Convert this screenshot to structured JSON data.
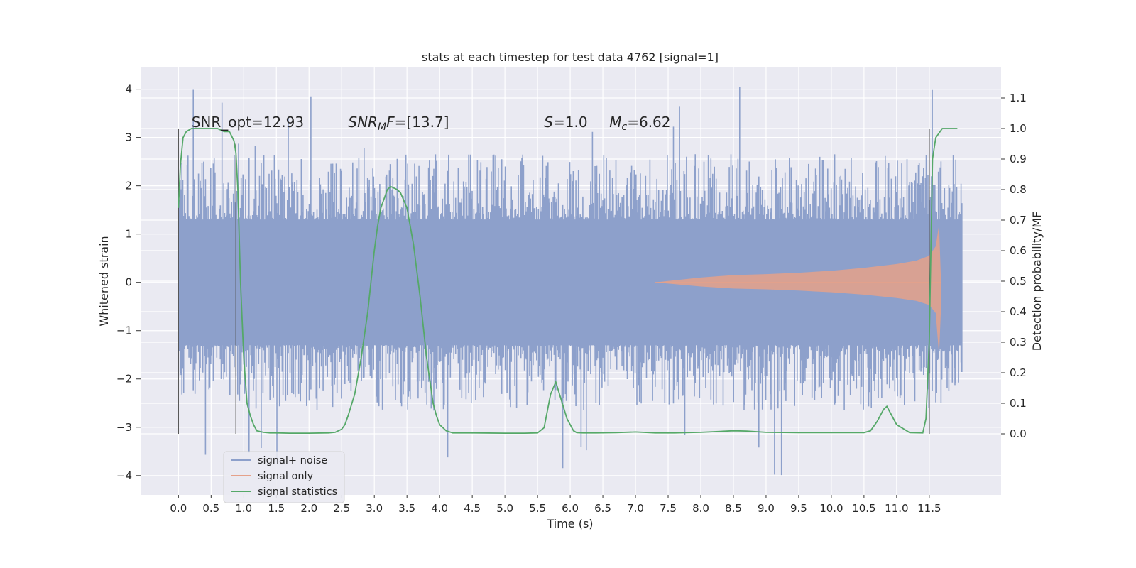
{
  "chart_data": {
    "type": "line",
    "title": "stats at each timestep for test data 4762 [signal=1]",
    "xlabel": "Time (s)",
    "ylabel_left": "Whitened strain",
    "ylabel_right": "Detection probability/MF",
    "xlim": [
      -0.58,
      12.6
    ],
    "ylim_left": [
      -4.4,
      4.45
    ],
    "ylim_right": [
      -0.2,
      1.2
    ],
    "x_ticks": [
      0.0,
      0.5,
      1.0,
      1.5,
      2.0,
      2.5,
      3.0,
      3.5,
      4.0,
      4.5,
      5.0,
      5.5,
      6.0,
      6.5,
      7.0,
      7.5,
      8.0,
      8.5,
      9.0,
      9.5,
      10.0,
      10.5,
      11.0,
      11.5
    ],
    "x_tick_labels": [
      "0.0",
      "0.5",
      "1.0",
      "1.5",
      "2.0",
      "2.5",
      "3.0",
      "3.5",
      "4.0",
      "4.5",
      "5.0",
      "5.5",
      "6.0",
      "6.5",
      "7.0",
      "7.5",
      "8.0",
      "8.5",
      "9.0",
      "9.5",
      "10.0",
      "10.5",
      "11.0",
      "11.5"
    ],
    "y_left_ticks": [
      4,
      3,
      2,
      1,
      0,
      -1,
      -2,
      -3,
      -4
    ],
    "y_left_tick_labels": [
      "4",
      "3",
      "2",
      "1",
      "0",
      "−1",
      "−2",
      "−3",
      "−4"
    ],
    "y_right_ticks": [
      1.1,
      1.0,
      0.9,
      0.8,
      0.7,
      0.6,
      0.5,
      0.4,
      0.3,
      0.2,
      0.1,
      0.0
    ],
    "y_right_tick_labels": [
      "1.1",
      "1.0",
      "0.9",
      "0.8",
      "0.7",
      "0.6",
      "0.5",
      "0.4",
      "0.3",
      "0.2",
      "0.1",
      "0.0"
    ],
    "annotations": [
      {
        "text": "SNR_opt=12.93",
        "x": 0.2,
        "y_right": 1.0
      },
      {
        "text_parts": [
          {
            "t": "SNR",
            "italic": true
          },
          {
            "t": "M",
            "italic": true,
            "sub": true
          },
          {
            "t": "F",
            "italic": true
          },
          {
            "t": "=[13.7]",
            "italic": false
          }
        ],
        "x": 2.6,
        "y_right": 1.0
      },
      {
        "text_parts": [
          {
            "t": "S",
            "italic": true
          },
          {
            "t": "=1.0",
            "italic": false
          }
        ],
        "x": 5.6,
        "y_right": 1.0
      },
      {
        "text_parts": [
          {
            "t": "M",
            "italic": true
          },
          {
            "t": "c",
            "italic": true,
            "sub": true
          },
          {
            "t": "=6.62",
            "italic": false
          }
        ],
        "x": 6.6,
        "y_right": 1.0
      }
    ],
    "vertical_markers": [
      {
        "x": 0.0,
        "y_right": [
          0.0,
          1.0
        ]
      },
      {
        "x": 0.88,
        "y_right": [
          0.0,
          0.95
        ]
      },
      {
        "x": 11.5,
        "y_right": [
          0.0,
          1.0
        ]
      }
    ],
    "series": [
      {
        "name": "signal+ noise",
        "color": "#8da0cb",
        "axis": "left",
        "x_range": [
          0.0,
          12.0
        ],
        "band_envelope": {
          "core_abs": 1.3,
          "typical_abs": 2.1,
          "max_abs": 4.1,
          "min": -4.0
        }
      },
      {
        "name": "signal only",
        "color": "#e5a18a",
        "axis": "left",
        "x": [
          7.3,
          7.5,
          8.0,
          8.5,
          9.0,
          9.5,
          10.0,
          10.5,
          11.0,
          11.3,
          11.5,
          11.6,
          11.65,
          11.68
        ],
        "amplitude": [
          0.0,
          0.03,
          0.1,
          0.15,
          0.17,
          0.2,
          0.24,
          0.3,
          0.38,
          0.45,
          0.55,
          0.75,
          1.2,
          0.0
        ]
      },
      {
        "name": "signal statistics",
        "color": "#55a868",
        "axis": "right",
        "x": [
          0.0,
          0.03,
          0.07,
          0.12,
          0.2,
          0.3,
          0.45,
          0.6,
          0.7,
          0.78,
          0.85,
          0.88,
          0.91,
          0.95,
          1.0,
          1.05,
          1.1,
          1.15,
          1.2,
          1.3,
          1.4,
          1.5,
          1.7,
          2.0,
          2.3,
          2.4,
          2.5,
          2.55,
          2.6,
          2.7,
          2.8,
          2.9,
          3.0,
          3.05,
          3.1,
          3.2,
          3.25,
          3.3,
          3.35,
          3.4,
          3.5,
          3.6,
          3.7,
          3.8,
          3.9,
          3.95,
          4.0,
          4.1,
          4.2,
          4.5,
          5.0,
          5.3,
          5.5,
          5.6,
          5.7,
          5.78,
          5.85,
          5.95,
          6.05,
          6.1,
          6.2,
          6.4,
          6.7,
          7.0,
          7.3,
          7.6,
          8.0,
          8.5,
          8.7,
          9.0,
          9.5,
          10.0,
          10.5,
          10.6,
          10.7,
          10.8,
          10.85,
          10.9,
          11.0,
          11.2,
          11.4,
          11.45,
          11.5,
          11.55,
          11.6,
          11.7,
          11.8,
          11.9,
          11.93
        ],
        "y": [
          0.74,
          0.88,
          0.97,
          0.99,
          1.0,
          1.0,
          1.0,
          1.0,
          0.99,
          0.99,
          0.96,
          0.92,
          0.8,
          0.5,
          0.25,
          0.1,
          0.06,
          0.03,
          0.01,
          0.005,
          0.003,
          0.003,
          0.002,
          0.002,
          0.003,
          0.005,
          0.015,
          0.03,
          0.06,
          0.13,
          0.25,
          0.4,
          0.6,
          0.68,
          0.74,
          0.8,
          0.81,
          0.805,
          0.8,
          0.79,
          0.74,
          0.62,
          0.45,
          0.25,
          0.1,
          0.06,
          0.03,
          0.01,
          0.003,
          0.003,
          0.002,
          0.002,
          0.003,
          0.02,
          0.13,
          0.17,
          0.12,
          0.05,
          0.01,
          0.004,
          0.003,
          0.003,
          0.004,
          0.006,
          0.003,
          0.003,
          0.005,
          0.01,
          0.009,
          0.005,
          0.004,
          0.004,
          0.004,
          0.01,
          0.04,
          0.08,
          0.09,
          0.07,
          0.03,
          0.004,
          0.003,
          0.05,
          0.3,
          0.9,
          0.97,
          1.0,
          1.0,
          1.0,
          1.0
        ]
      }
    ],
    "legend": {
      "position": "lower-left",
      "entries": [
        "signal+ noise",
        "signal only",
        "signal statistics"
      ]
    },
    "grid": true,
    "background": "#eaeaf2"
  }
}
